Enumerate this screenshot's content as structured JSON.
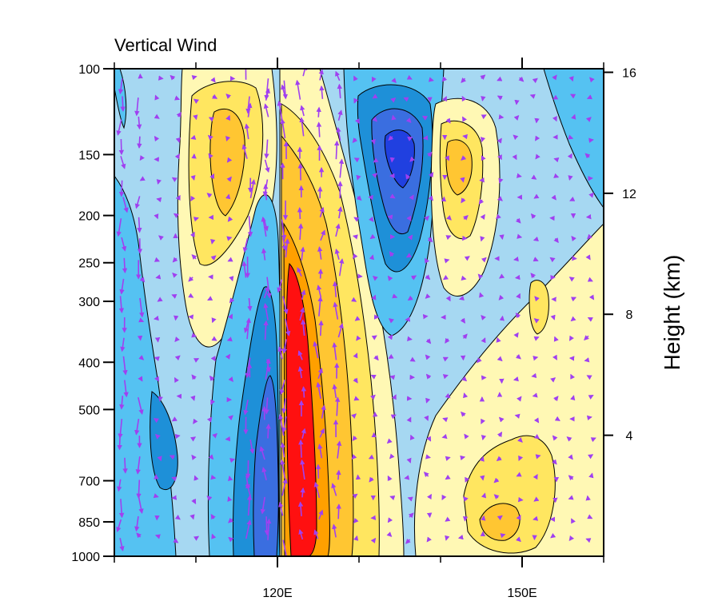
{
  "chart_data": {
    "type": "heatmap",
    "title": "Vertical Wind",
    "x_tick_labels": [
      "120E",
      "150E"
    ],
    "x_ticks": [
      120,
      150
    ],
    "x_minor_ticks": [
      100,
      110,
      130,
      140,
      160
    ],
    "xlim": [
      100,
      160
    ],
    "y_left_ticks": [
      {
        "value": 100,
        "label": "100"
      },
      {
        "value": 150,
        "label": "150"
      },
      {
        "value": 200,
        "label": "200"
      },
      {
        "value": 250,
        "label": "250"
      },
      {
        "value": 300,
        "label": "300"
      },
      {
        "value": 400,
        "label": "400"
      },
      {
        "value": 500,
        "label": "500"
      },
      {
        "value": 700,
        "label": "700"
      },
      {
        "value": 850,
        "label": "850"
      },
      {
        "value": 1000,
        "label": "1000"
      }
    ],
    "y_left_scale": "log",
    "y_left_range": [
      1000,
      100
    ],
    "y_right_label": "Height (km)",
    "y_right_ticks": [
      {
        "value": 16,
        "label": "16"
      },
      {
        "value": 12,
        "label": "12"
      },
      {
        "value": 8,
        "label": "8"
      },
      {
        "value": 4,
        "label": "4"
      }
    ],
    "colors": {
      "strong_down": "#2040e0",
      "down_3": "#3a6ee0",
      "down_2": "#1e90d8",
      "down_1": "#55c2f2",
      "weak_down": "#a6d8f2",
      "weak_up": "#fff8b4",
      "up_1": "#ffe660",
      "up_2": "#ffc632",
      "up_3": "#ffa000",
      "strong_up": "#ff1010",
      "vectors": "#a040f0"
    }
  }
}
